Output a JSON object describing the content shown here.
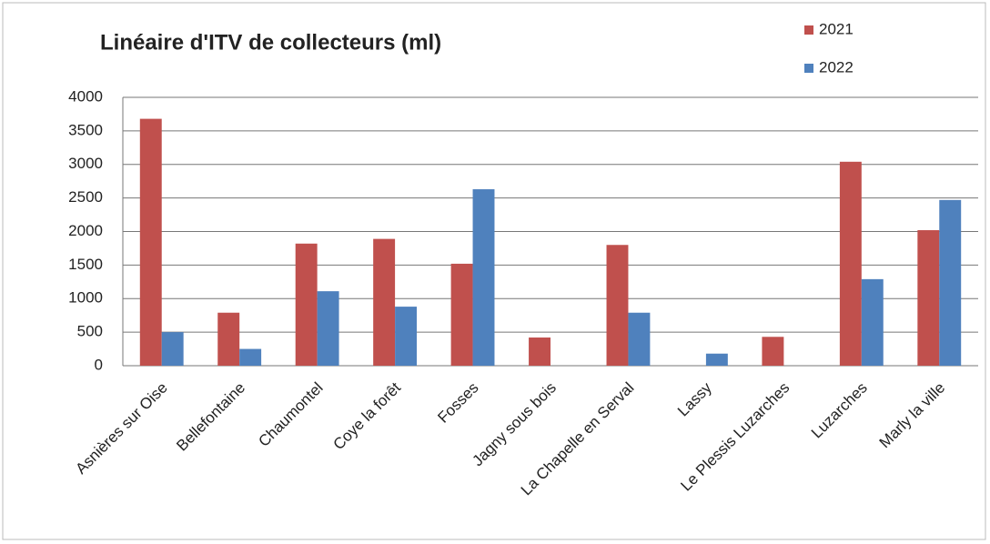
{
  "chart_data": {
    "type": "bar",
    "title": "Linéaire d'ITV de collecteurs (ml)",
    "categories": [
      "Asnières sur Oise",
      "Bellefontaine",
      "Chaumontel",
      "Coye la forêt",
      "Fosses",
      "Jagny sous bois",
      "La Chapelle en Serval",
      "Lassy",
      "Le Plessis Luzarches",
      "Luzarches",
      "Marly la ville"
    ],
    "series": [
      {
        "name": "2021",
        "color": "#c0504d",
        "values": [
          3680,
          790,
          1820,
          1890,
          1520,
          420,
          1800,
          0,
          430,
          3040,
          2020
        ]
      },
      {
        "name": "2022",
        "color": "#4f81bd",
        "values": [
          500,
          250,
          1110,
          880,
          2630,
          0,
          790,
          180,
          0,
          1290,
          2470
        ]
      }
    ],
    "ylim": [
      0,
      4000
    ],
    "yticks": [
      0,
      500,
      1000,
      1500,
      2000,
      2500,
      3000,
      3500,
      4000
    ],
    "grid": true,
    "legend": "top-right"
  }
}
